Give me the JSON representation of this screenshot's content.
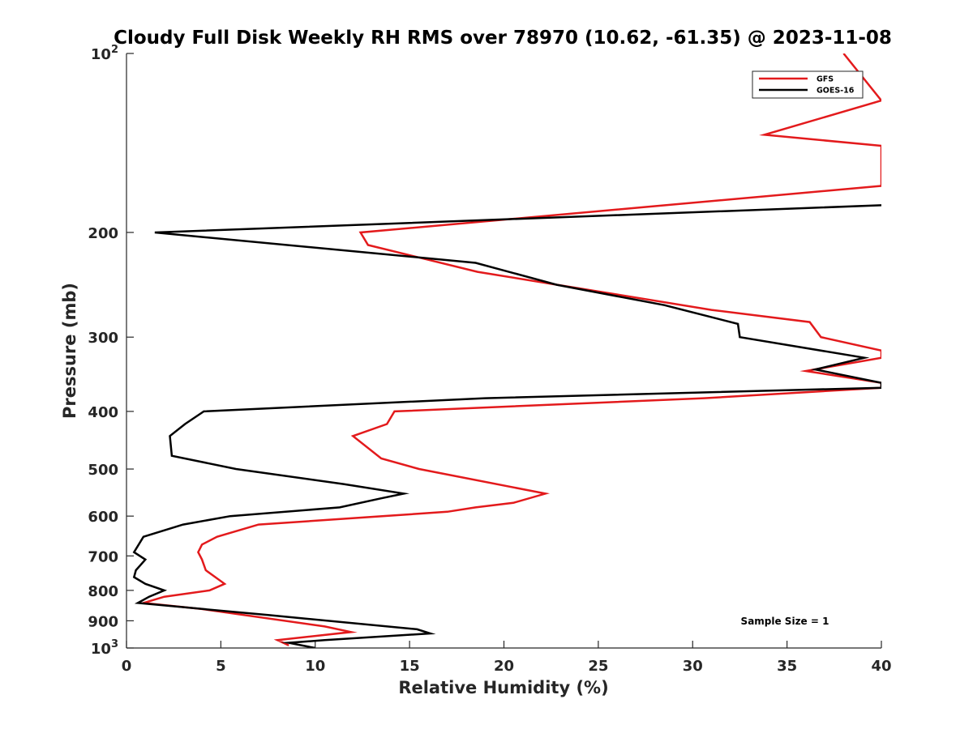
{
  "chart_data": {
    "type": "line",
    "title": "Cloudy Full Disk Weekly RH RMS over 78970 (10.62, -61.35) @ 2023-11-08",
    "xlabel": "Relative Humidity (%)",
    "ylabel": "Pressure (mb)",
    "xlim": [
      0,
      40
    ],
    "ylim": [
      100,
      1000
    ],
    "y_scale": "log",
    "y_reversed": true,
    "x_ticks": [
      0,
      5,
      10,
      15,
      20,
      25,
      30,
      35,
      40
    ],
    "y_ticks": [
      {
        "value": 100,
        "base": "10",
        "exp": "2"
      },
      {
        "value": 200,
        "label": "200"
      },
      {
        "value": 300,
        "label": "300"
      },
      {
        "value": 400,
        "label": "400"
      },
      {
        "value": 500,
        "label": "500"
      },
      {
        "value": 600,
        "label": "600"
      },
      {
        "value": 700,
        "label": "700"
      },
      {
        "value": 800,
        "label": "800"
      },
      {
        "value": 900,
        "label": "900"
      },
      {
        "value": 1000,
        "base": "10",
        "exp": "3"
      }
    ],
    "legend_position": "top-right",
    "annotation": "Sample Size = 1",
    "series": [
      {
        "name": "GFS",
        "color": "#e31a1c",
        "points": [
          [
            38,
            100
          ],
          [
            40,
            120
          ],
          [
            33.8,
            137
          ],
          [
            40,
            143
          ],
          [
            40,
            167
          ],
          [
            12.4,
            200
          ],
          [
            12.8,
            210
          ],
          [
            18.6,
            233
          ],
          [
            31,
            270
          ],
          [
            36.2,
            283
          ],
          [
            36.8,
            300
          ],
          [
            40,
            316
          ],
          [
            40,
            325
          ],
          [
            36,
            342
          ],
          [
            40,
            358
          ],
          [
            40,
            365
          ],
          [
            30.6,
            380
          ],
          [
            14.2,
            400
          ],
          [
            13.8,
            420
          ],
          [
            12,
            440
          ],
          [
            13.5,
            480
          ],
          [
            15.5,
            500
          ],
          [
            22.2,
            550
          ],
          [
            20.5,
            570
          ],
          [
            18.5,
            580
          ],
          [
            17,
            590
          ],
          [
            7,
            620
          ],
          [
            4.8,
            650
          ],
          [
            4,
            670
          ],
          [
            3.8,
            690
          ],
          [
            4,
            710
          ],
          [
            4.2,
            740
          ],
          [
            5.2,
            780
          ],
          [
            4.4,
            800
          ],
          [
            2,
            820
          ],
          [
            0.9,
            840
          ],
          [
            4,
            860
          ],
          [
            10.5,
            920
          ],
          [
            11.9,
            940
          ],
          [
            8,
            970
          ],
          [
            8.6,
            990
          ]
        ]
      },
      {
        "name": "GOES-16",
        "color": "#000000",
        "points": [
          [
            40,
            180
          ],
          [
            1.5,
            200
          ],
          [
            18.5,
            225
          ],
          [
            22.8,
            245
          ],
          [
            28.5,
            265
          ],
          [
            32.4,
            285
          ],
          [
            32.5,
            300
          ],
          [
            39.1,
            325
          ],
          [
            36.5,
            340
          ],
          [
            40,
            358
          ],
          [
            40,
            365
          ],
          [
            19,
            380
          ],
          [
            4.1,
            400
          ],
          [
            3.1,
            420
          ],
          [
            2.3,
            440
          ],
          [
            2.4,
            475
          ],
          [
            5.8,
            500
          ],
          [
            11.5,
            530
          ],
          [
            14.7,
            550
          ],
          [
            13.5,
            560
          ],
          [
            11.3,
            580
          ],
          [
            5.5,
            600
          ],
          [
            3,
            620
          ],
          [
            0.9,
            650
          ],
          [
            0.4,
            690
          ],
          [
            1,
            710
          ],
          [
            0.5,
            740
          ],
          [
            0.4,
            760
          ],
          [
            1,
            780
          ],
          [
            2,
            800
          ],
          [
            1.2,
            820
          ],
          [
            0.6,
            840
          ],
          [
            7.5,
            880
          ],
          [
            15.4,
            930
          ],
          [
            16.1,
            945
          ],
          [
            10.5,
            970
          ],
          [
            8.6,
            980
          ],
          [
            10,
            1000
          ]
        ]
      }
    ]
  }
}
